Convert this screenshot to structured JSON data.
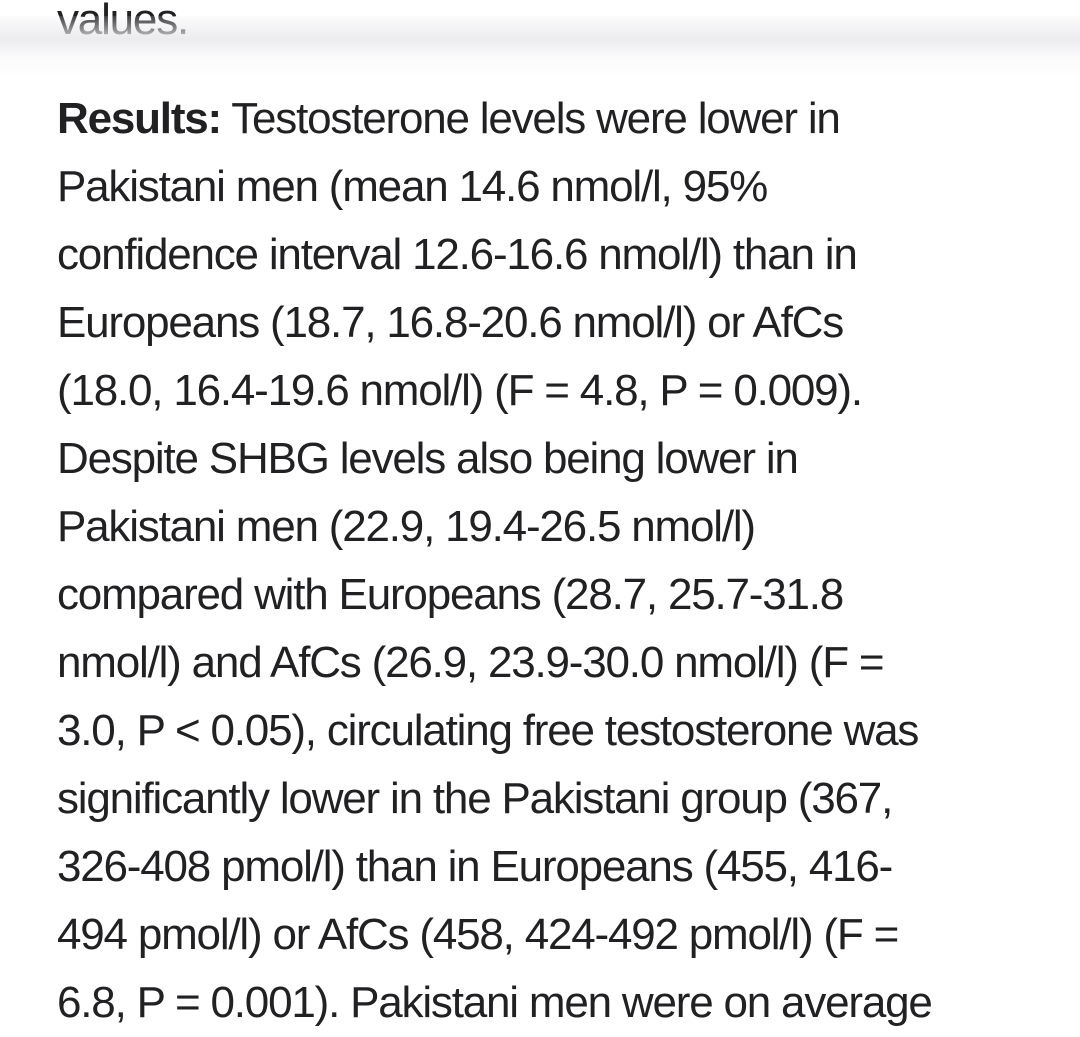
{
  "page": {
    "background_color": "#ffffff",
    "text_color": "#212124",
    "divider_shadow_color": "#e8e8ec"
  },
  "abstract": {
    "previous_paragraph_last_line": "values.",
    "results_label": "Results:",
    "results_lines": [
      " Testosterone levels were lower in",
      "Pakistani men (mean 14.6 nmol/l, 95%",
      "confidence interval 12.6-16.6 nmol/l) than in",
      "Europeans (18.7, 16.8-20.6 nmol/l) or AfCs",
      "(18.0, 16.4-19.6 nmol/l) (F = 4.8, P = 0.009).",
      "Despite SHBG levels also being lower in",
      "Pakistani men (22.9, 19.4-26.5 nmol/l)",
      "compared with Europeans (28.7, 25.7-31.8",
      "nmol/l) and AfCs (26.9, 23.9-30.0 nmol/l) (F =",
      "3.0, P < 0.05), circulating free testosterone was",
      "significantly lower in the Pakistani group (367,",
      "326-408 pmol/l) than in Europeans (455, 416-",
      "494 pmol/l) or AfCs (458, 424-492 pmol/l) (F =",
      "6.8, P = 0.001). Pakistani men were on average"
    ]
  }
}
